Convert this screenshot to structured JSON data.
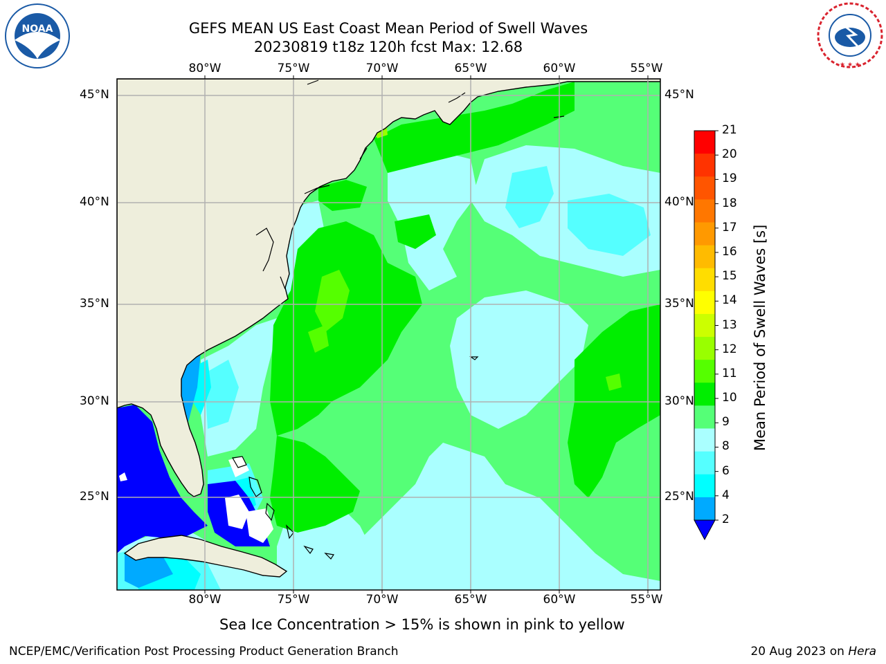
{
  "title": {
    "line1": "GEFS MEAN US East Coast Mean Period of Swell Waves",
    "line2": "20230819 t18z 120h fcst   Max: 12.68"
  },
  "logos": {
    "left": {
      "text": "NOAA",
      "ring_text": "NATIONAL OCEANIC AND ATMOSPHERIC ADMINISTRATION · U.S. DEPARTMENT OF COMMERCE",
      "icon": "noaa-logo",
      "color": "#1a5aa6"
    },
    "right": {
      "ring_text": "NATIONAL WEATHER SERVICE",
      "icon": "nws-logo",
      "color": "#d9232e"
    }
  },
  "map": {
    "lon_labels": [
      "80°W",
      "75°W",
      "70°W",
      "65°W",
      "60°W",
      "55°W"
    ],
    "lat_labels": [
      "45°N",
      "40°N",
      "35°N",
      "30°N",
      "25°N"
    ],
    "colors": {
      "land": "#eeeedc",
      "ocean_base": "#55ff77",
      "grid": "#b0b0b0"
    }
  },
  "colorbar": {
    "label": "Mean Period of Swell Waves [s]",
    "ticks": [
      "21",
      "20",
      "19",
      "18",
      "17",
      "16",
      "15",
      "14",
      "13",
      "12",
      "11",
      "10",
      "9",
      "8",
      "6",
      "4",
      "2"
    ],
    "colors": [
      "#ff0000",
      "#ff3300",
      "#ff5500",
      "#ff7700",
      "#ff9900",
      "#ffbb00",
      "#ffdd00",
      "#ffff00",
      "#ccff00",
      "#99ff00",
      "#55ff00",
      "#00ee00",
      "#55ff77",
      "#aaffff",
      "#55ffff",
      "#00ffff",
      "#00aaff",
      "#0000ff"
    ]
  },
  "note": "Sea Ice Concentration > 15% is shown in pink to yellow",
  "footer": {
    "left": "NCEP/EMC/Verification Post Processing Product Generation Branch",
    "right_date": "20 Aug 2023 on ",
    "right_host": "Hera"
  }
}
